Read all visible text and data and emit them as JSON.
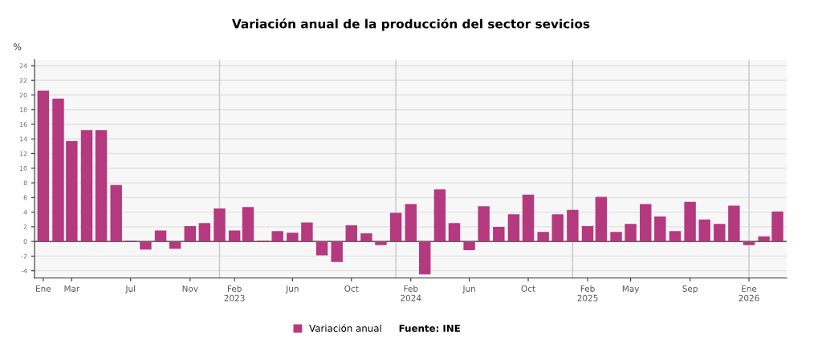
{
  "chart_data": {
    "type": "bar",
    "title": "Variación anual de la producción del sector sevicios",
    "ylabel": "%",
    "x": [
      "2022-01",
      "2022-02",
      "2022-03",
      "2022-04",
      "2022-05",
      "2022-06",
      "2022-07",
      "2022-08",
      "2022-09",
      "2022-10",
      "2022-11",
      "2022-12",
      "2023-01",
      "2023-02",
      "2023-03",
      "2023-04",
      "2023-05",
      "2023-06",
      "2023-07",
      "2023-08",
      "2023-09",
      "2023-10",
      "2023-11",
      "2023-12",
      "2024-01",
      "2024-02",
      "2024-03",
      "2024-04",
      "2024-05",
      "2024-06",
      "2024-07",
      "2024-08",
      "2024-09",
      "2024-10",
      "2024-11",
      "2024-12",
      "2025-01",
      "2025-02",
      "2025-03",
      "2025-04",
      "2025-05",
      "2025-06",
      "2025-07",
      "2025-08",
      "2025-09",
      "2025-10",
      "2025-11",
      "2025-12",
      "2026-01",
      "2026-02",
      "2026-03"
    ],
    "series": [
      {
        "name": "Variación anual",
        "color": "#b5397f",
        "values": [
          20.6,
          19.5,
          13.7,
          15.2,
          15.2,
          7.7,
          0.1,
          -1.1,
          1.5,
          -1.0,
          2.1,
          2.5,
          4.5,
          1.5,
          4.7,
          0.1,
          1.4,
          1.2,
          2.6,
          -1.9,
          -2.8,
          2.2,
          1.1,
          -0.5,
          3.9,
          5.1,
          -4.5,
          7.1,
          2.5,
          -1.2,
          4.8,
          2.0,
          3.7,
          6.4,
          1.3,
          3.7,
          4.3,
          2.1,
          6.1,
          1.3,
          2.4,
          5.1,
          3.4,
          1.4,
          5.4,
          3.0,
          2.4,
          4.9,
          -0.5,
          0.7,
          4.1
        ]
      }
    ],
    "xlim": [
      "2021-12-14",
      "2026-03-20"
    ],
    "xticks": [
      {
        "value": "2022-01",
        "label": "Ene"
      },
      {
        "value": "2022-03",
        "label": "Mar"
      },
      {
        "value": "2022-07",
        "label": "Jul"
      },
      {
        "value": "2022-11",
        "label": "Nov"
      },
      {
        "value": "2023-02",
        "label": "Feb\n2023"
      },
      {
        "value": "2023-06",
        "label": "Jun"
      },
      {
        "value": "2023-10",
        "label": "Oct"
      },
      {
        "value": "2024-02",
        "label": "Feb\n2024"
      },
      {
        "value": "2024-06",
        "label": "Jun"
      },
      {
        "value": "2024-10",
        "label": "Oct"
      },
      {
        "value": "2025-02",
        "label": "Feb\n2025"
      },
      {
        "value": "2025-05",
        "label": "May"
      },
      {
        "value": "2025-09",
        "label": "Sep"
      },
      {
        "value": "2026-01",
        "label": "Ene\n2026"
      }
    ],
    "ylim": [
      -5,
      24.8
    ],
    "yticks": [
      -4,
      -2,
      0,
      2,
      4,
      6,
      8,
      10,
      12,
      14,
      16,
      18,
      20,
      22,
      24
    ],
    "ref_lines": [
      {
        "axis": "x",
        "value": "2023-01",
        "color": "#c8c8c8"
      },
      {
        "axis": "x",
        "value": "2024-01",
        "color": "#c8c8c8"
      },
      {
        "axis": "x",
        "value": "2025-01",
        "color": "#c8c8c8"
      },
      {
        "axis": "x",
        "value": "2026-01",
        "color": "#c8c8c8"
      }
    ],
    "grid": "y",
    "legend": "bottom",
    "annotations": [
      "Fuente: INE"
    ]
  }
}
